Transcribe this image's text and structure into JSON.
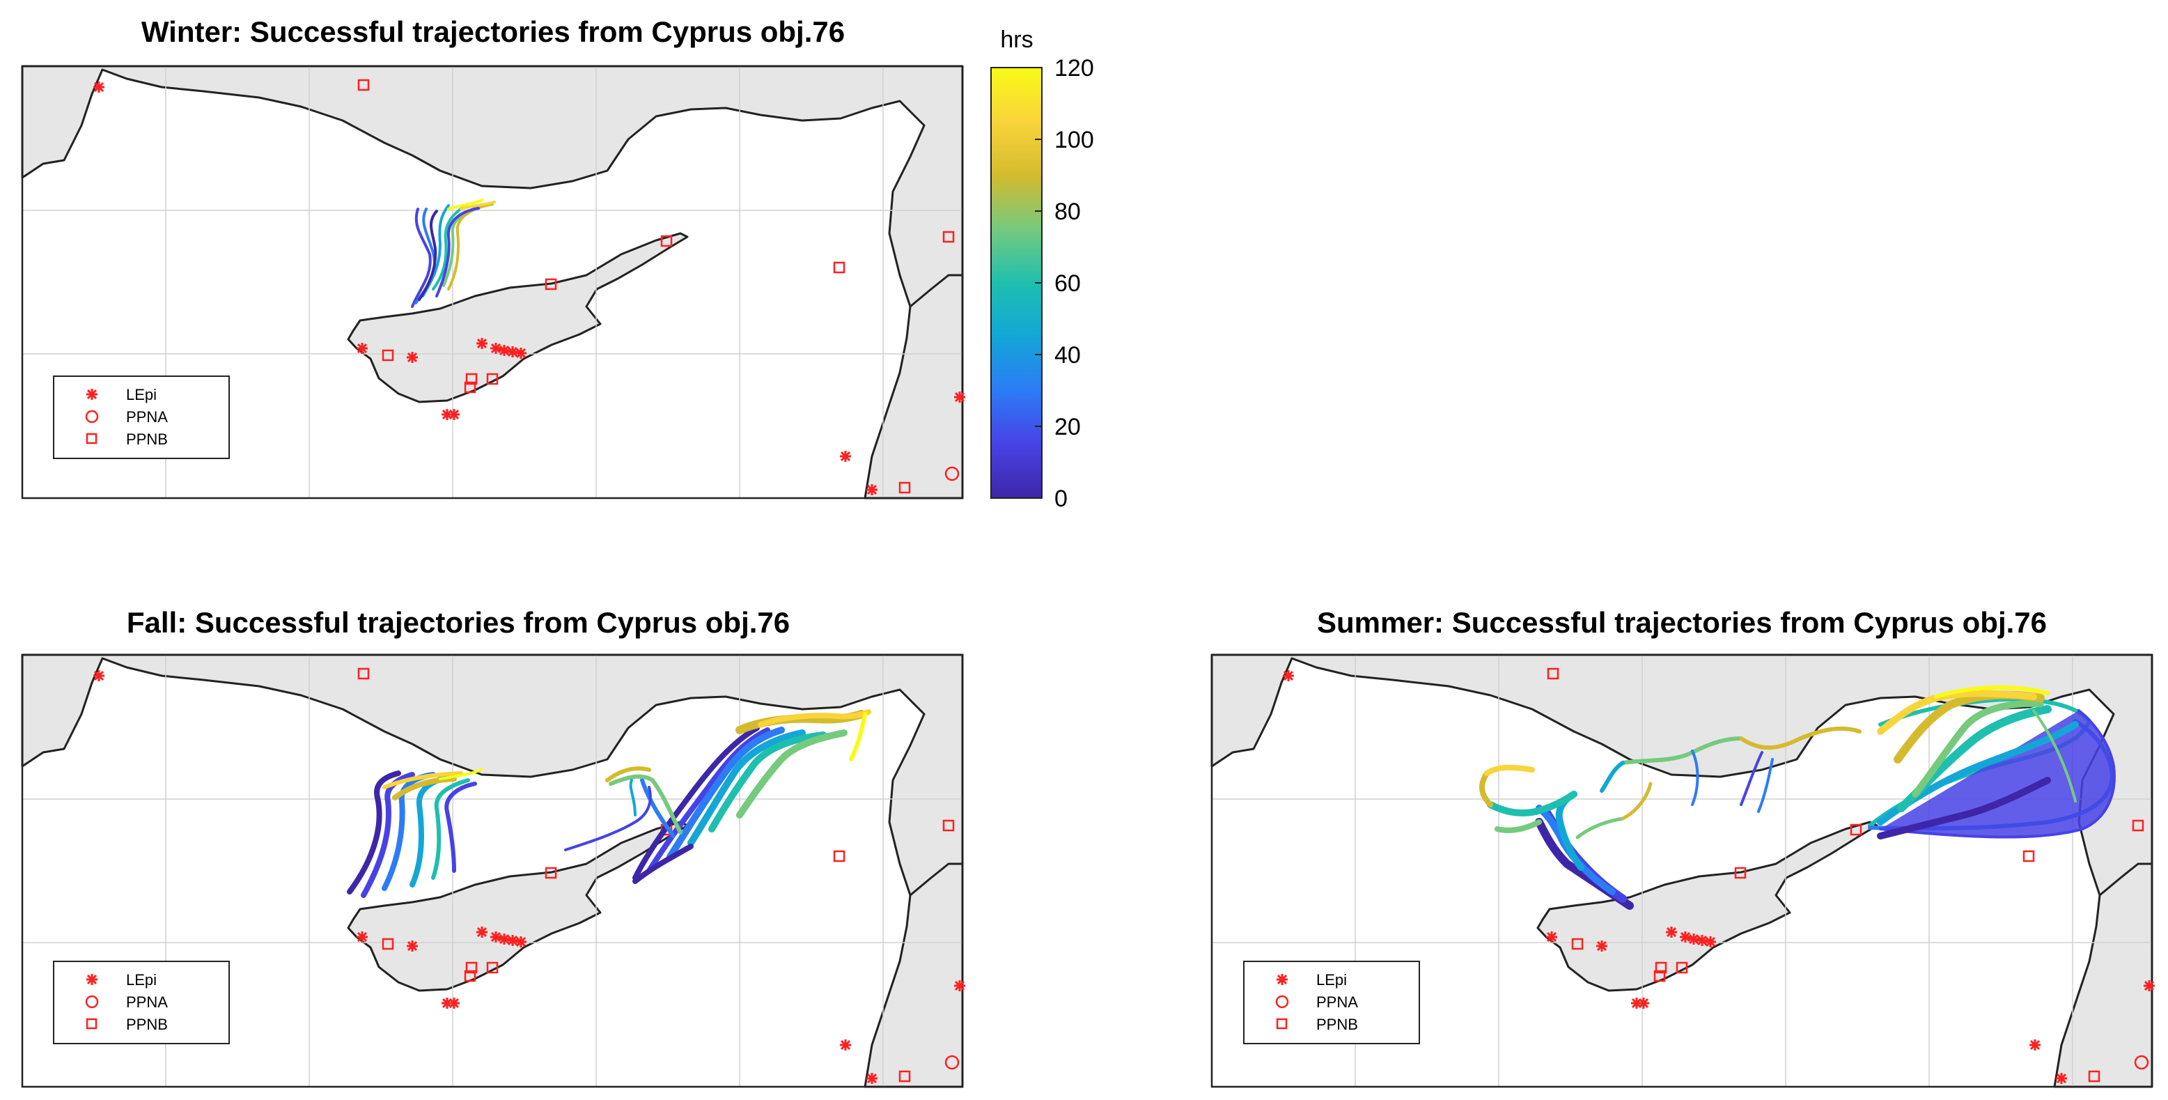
{
  "figure": {
    "colorbar": {
      "unit_label": "hrs",
      "ticks": [
        0,
        20,
        40,
        60,
        80,
        100,
        120
      ],
      "range": [
        0,
        120
      ],
      "colormap": [
        "#3e26a8",
        "#4742e5",
        "#2c7cf6",
        "#13a6d7",
        "#1ebfaf",
        "#75ca7d",
        "#d4bb2e",
        "#f9d43a",
        "#f9fb15"
      ]
    },
    "legend": {
      "entries": [
        {
          "label": "LEpi",
          "marker": "asterisk"
        },
        {
          "label": "PPNA",
          "marker": "circle"
        },
        {
          "label": "PPNB",
          "marker": "square"
        }
      ]
    },
    "colors": {
      "land": "#e6e6e6",
      "sea": "#ffffff",
      "coast": "#222222",
      "grid": "#d9d9d9",
      "marker": "#ff2020"
    },
    "panels": [
      {
        "id": "winter",
        "title": "Winter: Successful trajectories from Cyprus obj.76"
      },
      {
        "id": "fall",
        "title": "Fall: Successful trajectories from Cyprus obj.76"
      },
      {
        "id": "summer",
        "title": "Summer: Successful trajectories from Cyprus obj.76"
      }
    ]
  }
}
